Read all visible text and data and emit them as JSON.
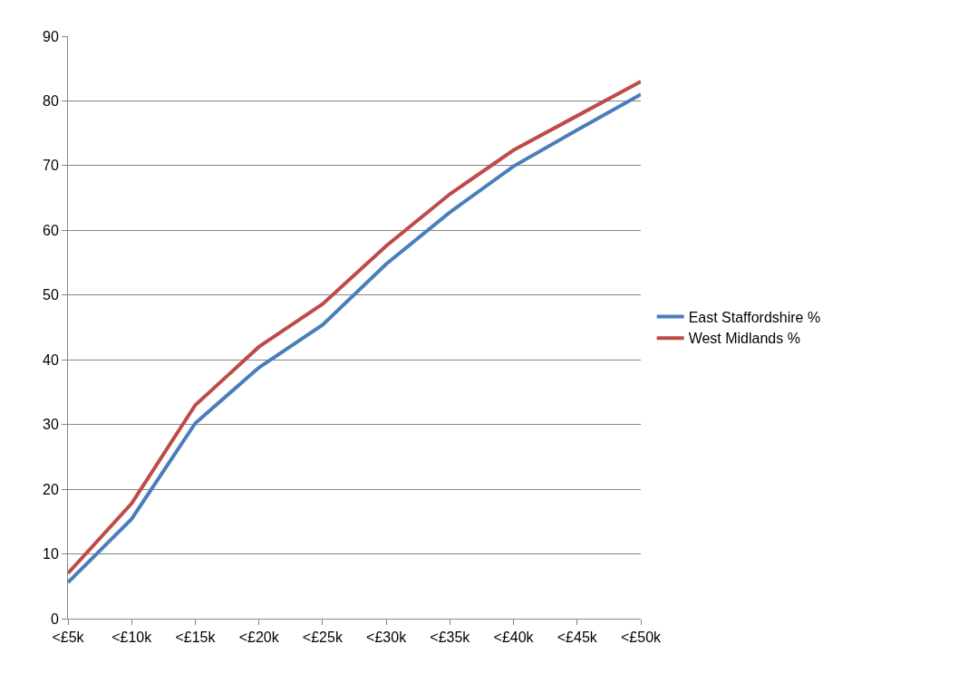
{
  "chart_data": {
    "type": "line",
    "categories": [
      "<£5k",
      "<£10k",
      "<£15k",
      "<£20k",
      "<£25k",
      "<£30k",
      "<£35k",
      "<£40k",
      "<£45k",
      "<£50k"
    ],
    "series": [
      {
        "name": "East Staffordshire %",
        "color": "#4a7ebb",
        "values": [
          5.6,
          15.4,
          30.2,
          38.8,
          45.4,
          54.8,
          62.8,
          69.9,
          75.5,
          81
        ]
      },
      {
        "name": "West Midlands %",
        "color": "#be4b48",
        "values": [
          7,
          17.8,
          33,
          42,
          48.6,
          57.6,
          65.6,
          72.4,
          77.7,
          83
        ]
      }
    ],
    "ylim": [
      0,
      90
    ],
    "yticks": [
      0,
      10,
      20,
      30,
      40,
      50,
      60,
      70,
      80,
      90
    ],
    "grid": "y",
    "legend": "right",
    "marker": "none",
    "line_style": "solid"
  }
}
